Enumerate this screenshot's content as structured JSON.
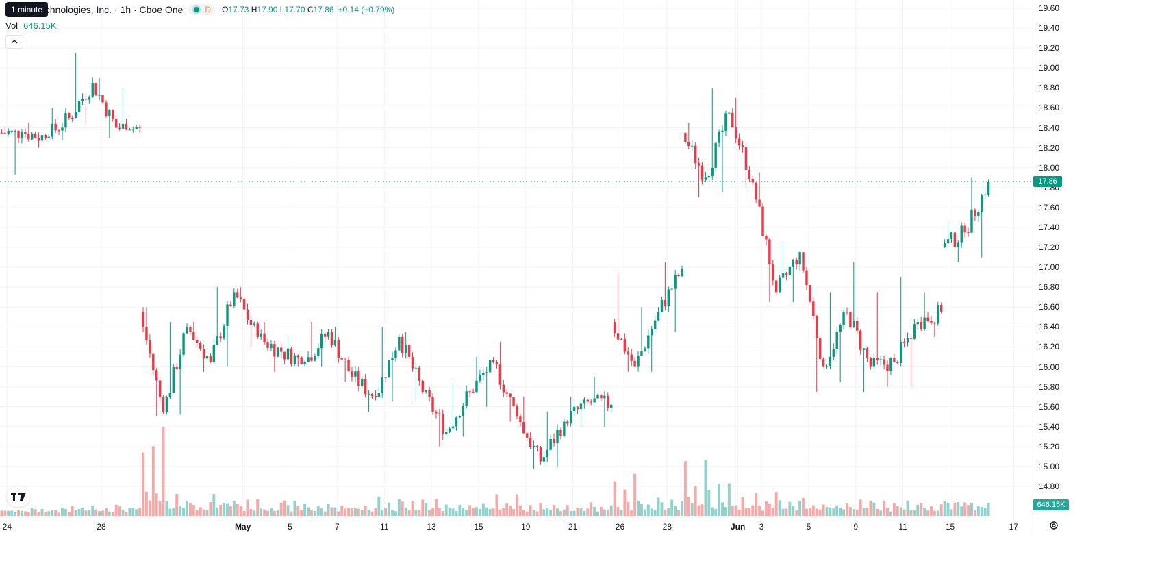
{
  "header": {
    "symbol_title": "echnologies, Inc. · 1h · Cboe One",
    "tooltip": "1 minute",
    "interval_badge": "D",
    "open_label": "O",
    "open_value": "17.73",
    "high_label": "H",
    "high_value": "17.90",
    "low_label": "L",
    "low_value": "17.70",
    "close_label": "C",
    "close_value": "17.86",
    "change": "+0.14 (+0.79%)"
  },
  "volume_legend": {
    "label": "Vol",
    "value": "646.15K"
  },
  "price_axis": {
    "ticks": [
      "19.60",
      "19.40",
      "19.20",
      "19.00",
      "18.80",
      "18.60",
      "18.40",
      "18.20",
      "18.00",
      "17.80",
      "17.60",
      "17.40",
      "17.20",
      "17.00",
      "16.80",
      "16.60",
      "16.40",
      "16.20",
      "16.00",
      "15.80",
      "15.60",
      "15.40",
      "15.20",
      "15.00",
      "14.80"
    ],
    "current_price": "17.86",
    "current_volume": "646.15K"
  },
  "time_axis": {
    "labels": [
      "24",
      "28",
      "May",
      "5",
      "7",
      "11",
      "13",
      "15",
      "19",
      "21",
      "26",
      "28",
      "Jun",
      "3",
      "5",
      "9",
      "11",
      "15",
      "17"
    ],
    "bold": [
      "May",
      "Jun"
    ]
  },
  "colors": {
    "up": "#089981",
    "down": "#f23645",
    "up_vol": "#26a69a",
    "down_vol": "#ef5350",
    "grid": "#f0f3fa",
    "last_price_line": "#089981"
  },
  "chart_data": {
    "type": "candlestick",
    "interval": "1h",
    "price_range": [
      14.7,
      19.65
    ],
    "last_close": 17.86,
    "days": [
      {
        "label": "24",
        "start": 18.35,
        "end": 18.36,
        "hi": 18.4,
        "lo": 17.93,
        "vol": [
          0.3,
          0.2,
          0.2
        ]
      },
      {
        "label": "",
        "start": 18.36,
        "end": 18.3,
        "hi": 18.45,
        "lo": 18.2,
        "vol": [
          0.25,
          0.22,
          0.3
        ]
      },
      {
        "label": "",
        "start": 18.3,
        "end": 18.5,
        "hi": 18.6,
        "lo": 18.28,
        "vol": [
          0.2,
          0.28,
          0.3
        ]
      },
      {
        "label": "",
        "start": 18.5,
        "end": 18.85,
        "hi": 19.15,
        "lo": 18.45,
        "vol": [
          0.4,
          0.3,
          0.25
        ]
      },
      {
        "label": "28",
        "start": 18.85,
        "end": 18.4,
        "hi": 18.9,
        "lo": 18.3,
        "vol": [
          0.45,
          0.3,
          0.25
        ]
      },
      {
        "label": "",
        "start": 18.4,
        "end": 18.4,
        "hi": 18.8,
        "lo": 18.35,
        "vol": [
          0.35,
          0.3,
          0.25
        ]
      },
      {
        "label": "",
        "start": 16.55,
        "end": 15.55,
        "hi": 16.6,
        "lo": 15.5,
        "vol": [
          3.2,
          0.9,
          0.6
        ]
      },
      {
        "label": "",
        "start": 15.55,
        "end": 16.4,
        "hi": 16.45,
        "lo": 15.52,
        "vol": [
          0.9,
          0.5,
          0.4
        ]
      },
      {
        "label": "",
        "start": 16.4,
        "end": 16.05,
        "hi": 16.45,
        "lo": 15.95,
        "vol": [
          0.6,
          0.45,
          0.35
        ]
      },
      {
        "label": "",
        "start": 16.05,
        "end": 16.75,
        "hi": 16.8,
        "lo": 16.0,
        "vol": [
          0.8,
          0.5,
          0.4
        ]
      },
      {
        "label": "May",
        "start": 16.75,
        "end": 16.3,
        "hi": 16.8,
        "lo": 16.2,
        "vol": [
          0.6,
          0.45,
          0.3
        ]
      },
      {
        "label": "",
        "start": 16.3,
        "end": 16.15,
        "hi": 16.45,
        "lo": 15.95,
        "vol": [
          0.5,
          0.35,
          0.3
        ]
      },
      {
        "label": "5",
        "start": 16.15,
        "end": 16.05,
        "hi": 16.3,
        "lo": 16.0,
        "vol": [
          0.55,
          0.4,
          0.3
        ]
      },
      {
        "label": "",
        "start": 16.05,
        "end": 16.35,
        "hi": 16.45,
        "lo": 16.0,
        "vol": [
          0.45,
          0.3,
          0.25
        ]
      },
      {
        "label": "7",
        "start": 16.35,
        "end": 15.9,
        "hi": 16.4,
        "lo": 15.85,
        "vol": [
          0.5,
          0.35,
          0.3
        ]
      },
      {
        "label": "",
        "start": 15.9,
        "end": 15.7,
        "hi": 16.0,
        "lo": 15.55,
        "vol": [
          0.45,
          0.3,
          0.25
        ]
      },
      {
        "label": "11",
        "start": 15.7,
        "end": 16.3,
        "hi": 16.4,
        "lo": 15.65,
        "vol": [
          0.8,
          0.4,
          0.3
        ]
      },
      {
        "label": "",
        "start": 16.3,
        "end": 15.75,
        "hi": 16.35,
        "lo": 15.65,
        "vol": [
          0.6,
          0.35,
          0.3
        ]
      },
      {
        "label": "13",
        "start": 15.75,
        "end": 15.35,
        "hi": 15.8,
        "lo": 15.2,
        "vol": [
          0.7,
          0.35,
          0.3
        ]
      },
      {
        "label": "",
        "start": 15.35,
        "end": 15.75,
        "hi": 15.85,
        "lo": 15.3,
        "vol": [
          0.5,
          0.35,
          0.3
        ]
      },
      {
        "label": "15",
        "start": 15.75,
        "end": 16.05,
        "hi": 16.1,
        "lo": 15.6,
        "vol": [
          0.5,
          0.35,
          0.3
        ]
      },
      {
        "label": "",
        "start": 16.05,
        "end": 15.5,
        "hi": 16.25,
        "lo": 15.45,
        "vol": [
          0.8,
          0.4,
          0.3
        ]
      },
      {
        "label": "19",
        "start": 15.5,
        "end": 15.05,
        "hi": 15.7,
        "lo": 14.98,
        "vol": [
          0.55,
          0.35,
          0.3
        ]
      },
      {
        "label": "",
        "start": 15.05,
        "end": 15.45,
        "hi": 15.55,
        "lo": 15.0,
        "vol": [
          0.4,
          0.3,
          0.25
        ]
      },
      {
        "label": "21",
        "start": 15.45,
        "end": 15.65,
        "hi": 15.7,
        "lo": 15.4,
        "vol": [
          0.45,
          0.3,
          0.25
        ]
      },
      {
        "label": "",
        "start": 15.65,
        "end": 15.62,
        "hi": 15.9,
        "lo": 15.4,
        "vol": [
          0.5,
          0.35,
          0.3
        ]
      },
      {
        "label": "26",
        "start": 16.45,
        "end": 16.0,
        "hi": 16.95,
        "lo": 15.95,
        "vol": [
          1.6,
          0.5,
          0.35
        ]
      },
      {
        "label": "",
        "start": 16.0,
        "end": 16.55,
        "hi": 16.6,
        "lo": 15.95,
        "vol": [
          0.8,
          0.45,
          0.35
        ]
      },
      {
        "label": "28",
        "start": 16.55,
        "end": 16.98,
        "hi": 17.05,
        "lo": 16.35,
        "vol": [
          0.6,
          0.4,
          0.3
        ]
      },
      {
        "label": "",
        "start": 18.35,
        "end": 17.9,
        "hi": 18.45,
        "lo": 17.7,
        "vol": [
          2.1,
          0.7,
          0.5
        ]
      },
      {
        "label": "",
        "start": 17.9,
        "end": 18.55,
        "hi": 18.8,
        "lo": 17.75,
        "vol": [
          1.2,
          0.6,
          0.4
        ]
      },
      {
        "label": "Jun",
        "start": 18.55,
        "end": 17.85,
        "hi": 18.7,
        "lo": 17.8,
        "vol": [
          0.7,
          0.45,
          0.35
        ]
      },
      {
        "label": "3",
        "start": 17.85,
        "end": 16.75,
        "hi": 17.95,
        "lo": 16.65,
        "vol": [
          0.9,
          0.5,
          0.35
        ]
      },
      {
        "label": "",
        "start": 16.75,
        "end": 17.15,
        "hi": 17.25,
        "lo": 16.65,
        "vol": [
          0.6,
          0.4,
          0.3
        ]
      },
      {
        "label": "5",
        "start": 17.15,
        "end": 16.0,
        "hi": 17.0,
        "lo": 15.75,
        "vol": [
          0.7,
          0.4,
          0.3
        ]
      },
      {
        "label": "",
        "start": 16.0,
        "end": 16.55,
        "hi": 16.75,
        "lo": 15.85,
        "vol": [
          0.6,
          0.4,
          0.3
        ]
      },
      {
        "label": "9",
        "start": 16.55,
        "end": 16.0,
        "hi": 17.05,
        "lo": 15.75,
        "vol": [
          0.6,
          0.4,
          0.3
        ]
      },
      {
        "label": "",
        "start": 16.0,
        "end": 16.05,
        "hi": 16.75,
        "lo": 15.8,
        "vol": [
          0.55,
          0.35,
          0.3
        ]
      },
      {
        "label": "11",
        "start": 16.05,
        "end": 16.45,
        "hi": 16.9,
        "lo": 15.8,
        "vol": [
          0.55,
          0.35,
          0.3
        ]
      },
      {
        "label": "",
        "start": 16.45,
        "end": 16.55,
        "hi": 16.75,
        "lo": 16.3,
        "vol": [
          0.5,
          0.35,
          0.3
        ]
      },
      {
        "label": "15",
        "start": 17.2,
        "end": 17.35,
        "hi": 17.45,
        "lo": 17.05,
        "vol": [
          0.8,
          0.5,
          0.4
        ]
      },
      {
        "label": "",
        "start": 17.35,
        "end": 17.86,
        "hi": 17.9,
        "lo": 17.1,
        "vol": [
          0.7,
          0.5,
          0.4
        ]
      }
    ]
  }
}
